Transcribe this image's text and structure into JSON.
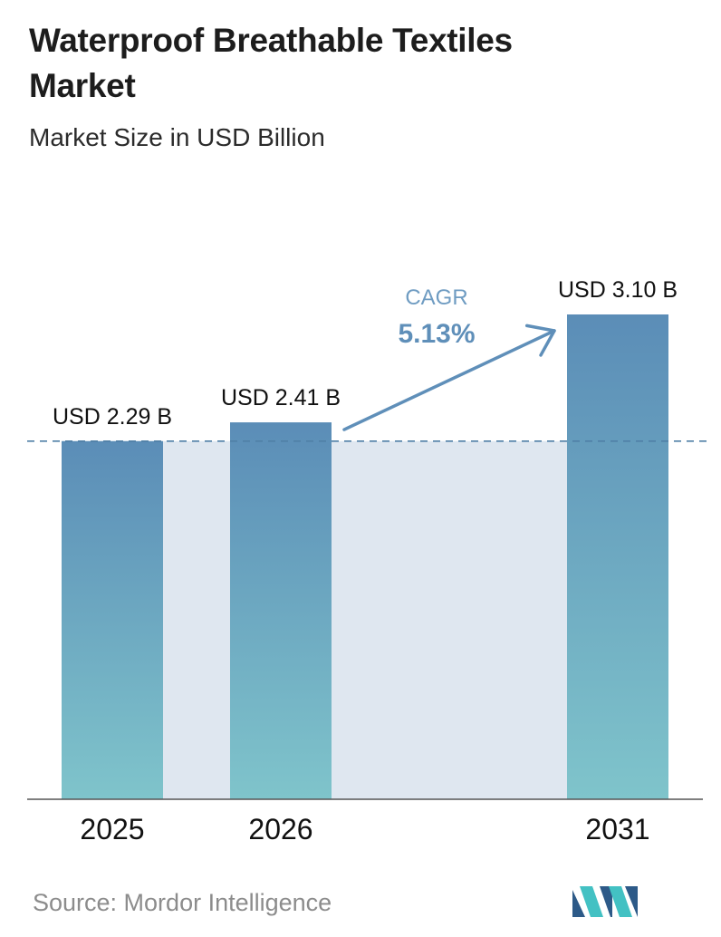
{
  "header": {
    "title": "Waterproof Breathable Textiles Market",
    "subtitle": "Market Size in USD Billion"
  },
  "chart_data": {
    "type": "bar",
    "title": "Waterproof Breathable Textiles Market",
    "subtitle": "Market Size in USD Billion",
    "categories": [
      "2025",
      "2026",
      "2031"
    ],
    "values": [
      2.29,
      2.41,
      3.1
    ],
    "data_labels": [
      "USD 2.29 B",
      "USD 2.41 B",
      "USD 3.10 B"
    ],
    "unit": "USD Billion",
    "reference_line_value": 2.29,
    "annotation": {
      "label": "CAGR",
      "value": "5.13%",
      "from": "2026",
      "to": "2031"
    },
    "xlabel": "",
    "ylabel": "",
    "grid": false,
    "legend": "none"
  },
  "footer": {
    "source": "Source:  Mordor Intelligence",
    "logo_name": "mordor-intelligence-logo"
  },
  "colors": {
    "bar_top": "#5b8db7",
    "bar_bottom": "#7fc4cb",
    "background_band": "#dfe7f0",
    "reference_line": "#4f7fa6",
    "arrow": "#5f8fb9",
    "cagr_label": "#6f9cc2",
    "cagr_value": "#5f8fb9",
    "logo_dark": "#2d5a88",
    "logo_light": "#43c1c3"
  }
}
